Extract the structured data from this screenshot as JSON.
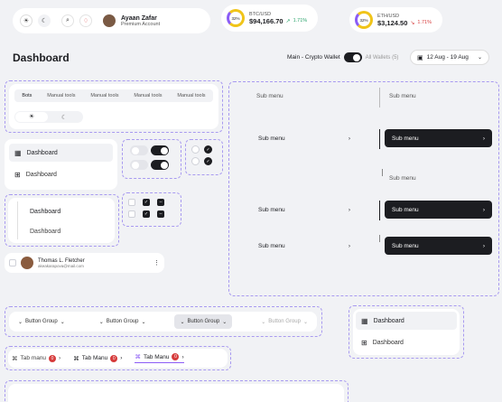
{
  "header": {
    "user": {
      "name": "Ayaan Zafar",
      "role": "Premium Account"
    },
    "tickers": [
      {
        "pair": "BTC/USD",
        "value": "$94,166.70",
        "change": "1.71%",
        "ring": "32%",
        "trend": "up"
      },
      {
        "pair": "ETH/USD",
        "value": "$3,124.50",
        "change": "1.71%",
        "ring": "32%",
        "trend": "down"
      }
    ],
    "title": "Dashboard",
    "wallet_main": "Main - Crypto Wallet",
    "wallet_all": "All Wallets (5)",
    "date_range": "12 Aug - 19 Aug"
  },
  "tabs_card": {
    "tabs": [
      "Bots",
      "Manual tools",
      "Manual tools",
      "Manual tools",
      "Manual tools"
    ]
  },
  "nav_a": {
    "items": [
      "Dashboard",
      "Dashboard"
    ]
  },
  "nav_b": {
    "items": [
      "Dashboard",
      "Dashboard"
    ]
  },
  "contact": {
    "name": "Thomas L. Fletcher",
    "email": "akeakarapova@mail.com"
  },
  "submenu": {
    "label": "Sub menu",
    "left": [
      "Sub menu",
      "Sub menu",
      "Sub menu",
      "Sub menu"
    ],
    "right": [
      "Sub menu",
      "Sub menu",
      "Sub menu",
      "Sub menu",
      "Sub menu"
    ]
  },
  "button_groups": [
    "Button Group",
    "Button Group",
    "Button Group",
    "Button Group"
  ],
  "nav_c": {
    "items": [
      "Dashboard",
      "Dashboard"
    ]
  },
  "tab_menus": [
    {
      "label": "Tab manu",
      "count": "0"
    },
    {
      "label": "Tab Manu",
      "count": "0"
    },
    {
      "label": "Tab Manu",
      "count": "0"
    }
  ],
  "colors": {
    "accent": "#8b5cf6",
    "dark": "#1c1d21",
    "badge": "#d63b3b",
    "up": "#2aa36b",
    "down": "#d63b3b"
  }
}
